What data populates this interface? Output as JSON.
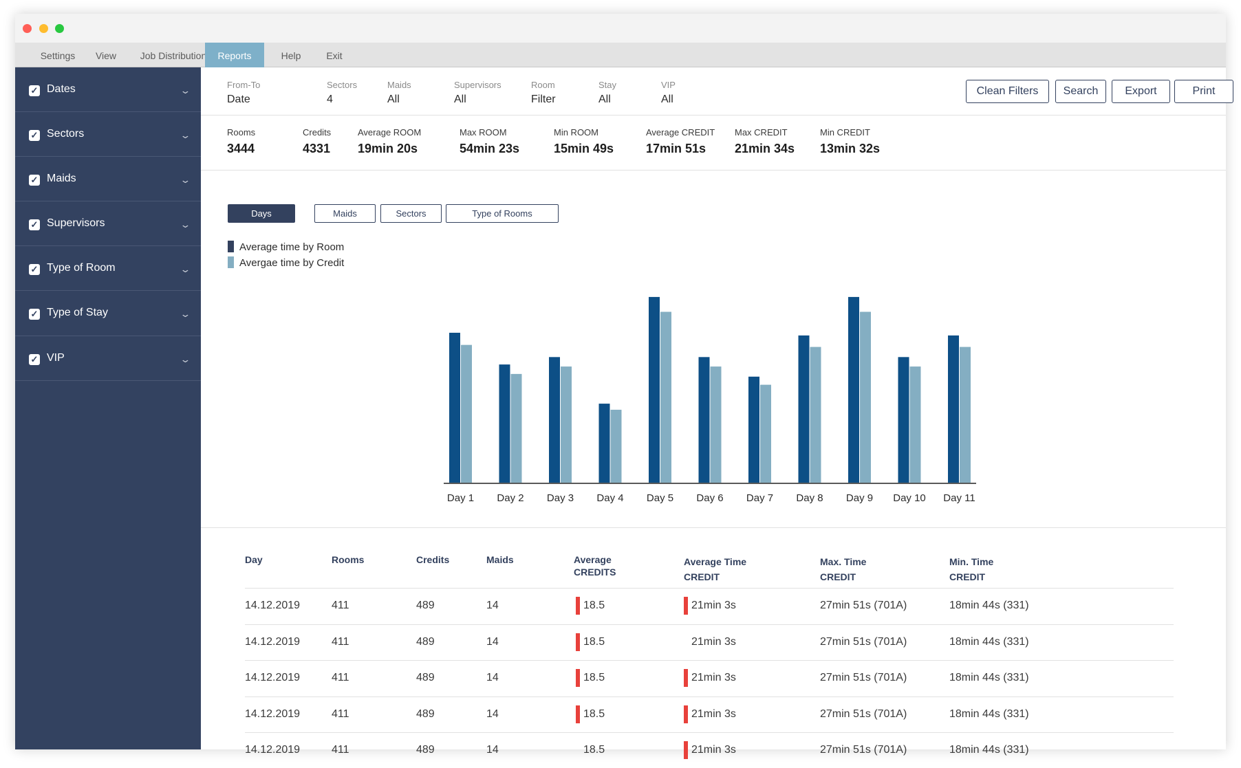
{
  "menu": {
    "items": [
      "Settings",
      "View",
      "Job Distribution",
      "Reports",
      "Help",
      "Exit"
    ],
    "active": "Reports"
  },
  "sidebar": {
    "items": [
      {
        "label": "Dates",
        "checked": true
      },
      {
        "label": "Sectors",
        "checked": true
      },
      {
        "label": "Maids",
        "checked": true
      },
      {
        "label": "Supervisors",
        "checked": true
      },
      {
        "label": "Type of Room",
        "checked": true
      },
      {
        "label": "Type of Stay",
        "checked": true
      },
      {
        "label": "VIP",
        "checked": true
      }
    ]
  },
  "filters": [
    {
      "label": "From-To",
      "value": "Date"
    },
    {
      "label": "Sectors",
      "value": "4"
    },
    {
      "label": "Maids",
      "value": "All"
    },
    {
      "label": "Supervisors",
      "value": "All"
    },
    {
      "label": "Room",
      "value": "Filter"
    },
    {
      "label": "Stay",
      "value": "All"
    },
    {
      "label": "VIP",
      "value": "All"
    }
  ],
  "actions": {
    "clean_filters": "Clean Filters",
    "search": "Search",
    "export": "Export",
    "print": "Print"
  },
  "stats": [
    {
      "label": "Rooms",
      "value": "3444"
    },
    {
      "label": "Credits",
      "value": "4331"
    },
    {
      "label": "Average ROOM",
      "value": "19min 20s"
    },
    {
      "label": "Max ROOM",
      "value": "54min 23s"
    },
    {
      "label": "Min ROOM",
      "value": "15min 49s"
    },
    {
      "label": "Average CREDIT",
      "value": "17min 51s"
    },
    {
      "label": "Max CREDIT",
      "value": "21min 34s"
    },
    {
      "label": "Min CREDIT",
      "value": "13min 32s"
    }
  ],
  "chart_tabs": {
    "items": [
      "Days",
      "Maids",
      "Sectors",
      "Type of Rooms"
    ],
    "active": "Days"
  },
  "colors": {
    "sidebar": "#334260",
    "menu_active": "#7eb0c9",
    "series_room": "#0d4f86",
    "series_credit": "#84aec2",
    "flag": "#e8413b"
  },
  "chart_data": {
    "type": "bar",
    "categories": [
      "Day 1",
      "Day 2",
      "Day 3",
      "Day 4",
      "Day 5",
      "Day 6",
      "Day 7",
      "Day 8",
      "Day 9",
      "Day 10",
      "Day 11"
    ],
    "series": [
      {
        "name": "Average time by Room",
        "values": [
          222,
          175,
          186,
          117,
          275,
          186,
          157,
          218,
          275,
          186,
          218
        ]
      },
      {
        "name": "Avergae time by Credit",
        "values": [
          204,
          161,
          172,
          108,
          253,
          172,
          145,
          201,
          253,
          172,
          201
        ]
      }
    ],
    "ylim": [
      0,
      280
    ],
    "grid": false,
    "legend": "top-left",
    "xlabel": "",
    "ylabel": ""
  },
  "table": {
    "headers": [
      [
        "Day"
      ],
      [
        "Rooms"
      ],
      [
        "Credits"
      ],
      [
        "Maids"
      ],
      [
        "Average",
        "CREDITS"
      ],
      [
        "Average Time",
        "CREDIT"
      ],
      [
        "Max. Time",
        "CREDIT"
      ],
      [
        "Min. Time",
        "CREDIT"
      ]
    ],
    "rows": [
      {
        "day": "14.12.2019",
        "rooms": "411",
        "credits": "489",
        "maids": "14",
        "avg_credits": "18.5",
        "avg_time": "21min 3s",
        "max_time": "27min 51s (701A)",
        "min_time": "18min 44s (331)",
        "flag_avg_credits": true,
        "flag_avg_time": true
      },
      {
        "day": "14.12.2019",
        "rooms": "411",
        "credits": "489",
        "maids": "14",
        "avg_credits": "18.5",
        "avg_time": "21min 3s",
        "max_time": "27min 51s (701A)",
        "min_time": "18min 44s (331)",
        "flag_avg_credits": true,
        "flag_avg_time": false
      },
      {
        "day": "14.12.2019",
        "rooms": "411",
        "credits": "489",
        "maids": "14",
        "avg_credits": "18.5",
        "avg_time": "21min 3s",
        "max_time": "27min 51s (701A)",
        "min_time": "18min 44s (331)",
        "flag_avg_credits": true,
        "flag_avg_time": true
      },
      {
        "day": "14.12.2019",
        "rooms": "411",
        "credits": "489",
        "maids": "14",
        "avg_credits": "18.5",
        "avg_time": "21min 3s",
        "max_time": "27min 51s (701A)",
        "min_time": "18min 44s (331)",
        "flag_avg_credits": true,
        "flag_avg_time": true
      },
      {
        "day": "14.12.2019",
        "rooms": "411",
        "credits": "489",
        "maids": "14",
        "avg_credits": "18.5",
        "avg_time": "21min 3s",
        "max_time": "27min 51s (701A)",
        "min_time": "18min 44s (331)",
        "flag_avg_credits": false,
        "flag_avg_time": true
      }
    ]
  }
}
